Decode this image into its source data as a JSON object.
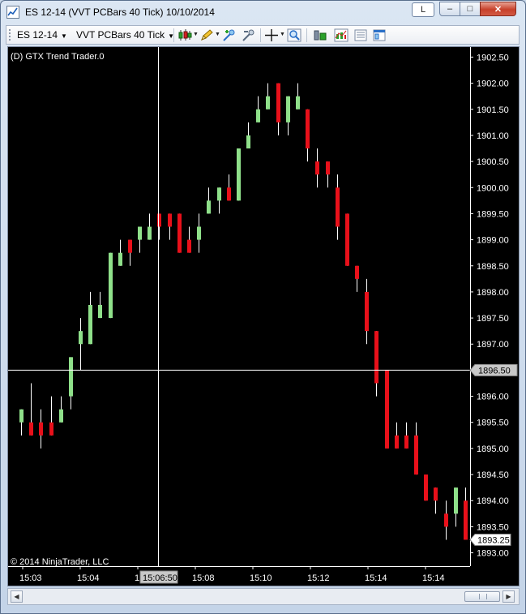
{
  "window": {
    "title": "ES 12-14 (VVT PCBars 40 Tick)  10/10/2014",
    "link_button_label": "L",
    "minimize_symbol": "–",
    "maximize_symbol": "□",
    "close_symbol": "✕"
  },
  "toolbar": {
    "instrument": "ES 12-14",
    "period": "VVT PCBars 40 Tick",
    "icons": [
      "bar-type-icon",
      "drawing-pencil-icon",
      "zoom-in-icon",
      "zoom-out-icon",
      "crosshair-icon",
      "magnify-icon",
      "strategies-icon",
      "indicators-icon",
      "data-box-icon",
      "properties-icon"
    ]
  },
  "chart": {
    "indicator_label": "(D) GTX Trend Trader.0",
    "copyright": "© 2014 NinjaTrader, LLC",
    "crosshair_price_label": "1896.50",
    "crosshair_time_label": "15:06:50",
    "last_price_label": "1893.25"
  },
  "chart_data": {
    "type": "candlestick",
    "ylim": [
      1892.9,
      1902.6
    ],
    "grid": false,
    "colors": {
      "up": "#8fe08a",
      "down": "#e8101a",
      "wick": "#ffffff",
      "background": "#000000",
      "text": "#ffffff"
    },
    "y_ticks": [
      "1902.50",
      "1902.00",
      "1901.50",
      "1901.00",
      "1900.50",
      "1900.00",
      "1899.50",
      "1899.00",
      "1898.50",
      "1898.00",
      "1897.50",
      "1897.00",
      "1896.50",
      "1896.00",
      "1895.50",
      "1895.00",
      "1894.50",
      "1894.00",
      "1893.50",
      "1893.00"
    ],
    "x_ticks": [
      "15:03",
      "15:04",
      "15:06",
      "15:08",
      "15:10",
      "15:12",
      "15:14",
      "15:14"
    ],
    "candles": [
      {
        "d": "up",
        "o": 1895.5,
        "c": 1895.75,
        "h": 1895.75,
        "l": 1895.25
      },
      {
        "d": "down",
        "o": 1895.5,
        "c": 1895.25,
        "h": 1896.25,
        "l": 1895.25
      },
      {
        "d": "down",
        "o": 1895.5,
        "c": 1895.25,
        "h": 1895.75,
        "l": 1895.0
      },
      {
        "d": "down",
        "o": 1895.5,
        "c": 1895.25,
        "h": 1896.0,
        "l": 1895.25
      },
      {
        "d": "up",
        "o": 1895.5,
        "c": 1895.75,
        "h": 1896.0,
        "l": 1895.5
      },
      {
        "d": "up",
        "o": 1896.0,
        "c": 1896.75,
        "h": 1896.75,
        "l": 1895.75
      },
      {
        "d": "up",
        "o": 1897.0,
        "c": 1897.25,
        "h": 1897.5,
        "l": 1896.5
      },
      {
        "d": "up",
        "o": 1897.0,
        "c": 1897.75,
        "h": 1898.0,
        "l": 1897.0
      },
      {
        "d": "up",
        "o": 1897.5,
        "c": 1897.75,
        "h": 1898.0,
        "l": 1897.5
      },
      {
        "d": "up",
        "o": 1897.5,
        "c": 1898.75,
        "h": 1898.75,
        "l": 1897.5
      },
      {
        "d": "up",
        "o": 1898.5,
        "c": 1898.75,
        "h": 1899.0,
        "l": 1898.5
      },
      {
        "d": "down",
        "o": 1899.0,
        "c": 1898.75,
        "h": 1899.0,
        "l": 1898.5
      },
      {
        "d": "up",
        "o": 1899.0,
        "c": 1899.25,
        "h": 1899.25,
        "l": 1898.75
      },
      {
        "d": "up",
        "o": 1899.0,
        "c": 1899.25,
        "h": 1899.5,
        "l": 1899.0
      },
      {
        "d": "down",
        "o": 1899.5,
        "c": 1899.25,
        "h": 1899.5,
        "l": 1899.0
      },
      {
        "d": "down",
        "o": 1899.5,
        "c": 1899.25,
        "h": 1899.5,
        "l": 1899.0
      },
      {
        "d": "down",
        "o": 1899.5,
        "c": 1898.75,
        "h": 1899.5,
        "l": 1898.75
      },
      {
        "d": "down",
        "o": 1899.0,
        "c": 1898.75,
        "h": 1899.25,
        "l": 1898.75
      },
      {
        "d": "up",
        "o": 1899.0,
        "c": 1899.25,
        "h": 1899.5,
        "l": 1898.75
      },
      {
        "d": "up",
        "o": 1899.5,
        "c": 1899.75,
        "h": 1900.0,
        "l": 1899.5
      },
      {
        "d": "up",
        "o": 1899.75,
        "c": 1900.0,
        "h": 1900.0,
        "l": 1899.5
      },
      {
        "d": "down",
        "o": 1900.0,
        "c": 1899.75,
        "h": 1900.25,
        "l": 1899.75
      },
      {
        "d": "up",
        "o": 1899.75,
        "c": 1900.75,
        "h": 1900.75,
        "l": 1899.75
      },
      {
        "d": "up",
        "o": 1900.75,
        "c": 1901.0,
        "h": 1901.25,
        "l": 1900.75
      },
      {
        "d": "up",
        "o": 1901.25,
        "c": 1901.5,
        "h": 1901.75,
        "l": 1901.25
      },
      {
        "d": "up",
        "o": 1901.5,
        "c": 1901.75,
        "h": 1902.0,
        "l": 1901.5
      },
      {
        "d": "down",
        "o": 1902.0,
        "c": 1901.25,
        "h": 1902.0,
        "l": 1901.0
      },
      {
        "d": "up",
        "o": 1901.25,
        "c": 1901.75,
        "h": 1901.75,
        "l": 1901.0
      },
      {
        "d": "up",
        "o": 1901.5,
        "c": 1901.75,
        "h": 1902.0,
        "l": 1901.5
      },
      {
        "d": "down",
        "o": 1901.5,
        "c": 1900.75,
        "h": 1901.5,
        "l": 1900.5
      },
      {
        "d": "down",
        "o": 1900.5,
        "c": 1900.25,
        "h": 1900.75,
        "l": 1900.0
      },
      {
        "d": "down",
        "o": 1900.5,
        "c": 1900.25,
        "h": 1900.5,
        "l": 1900.0
      },
      {
        "d": "down",
        "o": 1900.0,
        "c": 1899.25,
        "h": 1900.25,
        "l": 1899.0
      },
      {
        "d": "down",
        "o": 1899.5,
        "c": 1898.5,
        "h": 1899.5,
        "l": 1898.5
      },
      {
        "d": "down",
        "o": 1898.5,
        "c": 1898.25,
        "h": 1898.5,
        "l": 1898.0
      },
      {
        "d": "down",
        "o": 1898.0,
        "c": 1897.25,
        "h": 1898.25,
        "l": 1897.0
      },
      {
        "d": "down",
        "o": 1897.25,
        "c": 1896.25,
        "h": 1897.25,
        "l": 1896.0
      },
      {
        "d": "down",
        "o": 1896.5,
        "c": 1895.0,
        "h": 1896.5,
        "l": 1895.0
      },
      {
        "d": "down",
        "o": 1895.25,
        "c": 1895.0,
        "h": 1895.5,
        "l": 1895.0
      },
      {
        "d": "down",
        "o": 1895.25,
        "c": 1895.0,
        "h": 1895.5,
        "l": 1895.0
      },
      {
        "d": "down",
        "o": 1895.25,
        "c": 1894.5,
        "h": 1895.5,
        "l": 1894.5
      },
      {
        "d": "down",
        "o": 1894.5,
        "c": 1894.0,
        "h": 1894.5,
        "l": 1894.0
      },
      {
        "d": "down",
        "o": 1894.25,
        "c": 1894.0,
        "h": 1894.25,
        "l": 1893.75
      },
      {
        "d": "down",
        "o": 1893.75,
        "c": 1893.5,
        "h": 1894.0,
        "l": 1893.25
      },
      {
        "d": "up",
        "o": 1893.75,
        "c": 1894.25,
        "h": 1894.25,
        "l": 1893.5
      },
      {
        "d": "down",
        "o": 1894.0,
        "c": 1893.25,
        "h": 1894.25,
        "l": 1893.25
      }
    ]
  }
}
